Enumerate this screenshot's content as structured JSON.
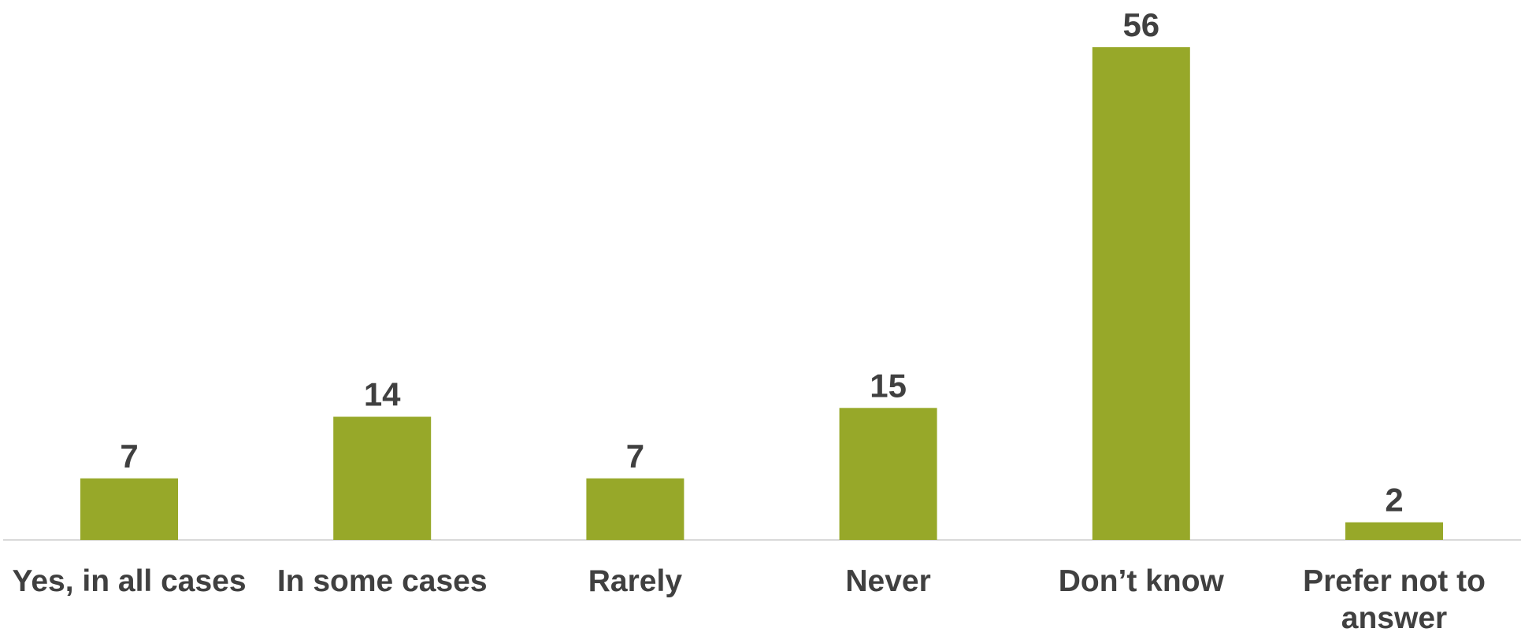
{
  "chart_data": {
    "type": "bar",
    "categories": [
      "Yes, in all cases",
      "In some cases",
      "Rarely",
      "Never",
      "Don’t know",
      "Prefer not to answer"
    ],
    "category_lines": [
      [
        "Yes, in all cases"
      ],
      [
        "In some cases"
      ],
      [
        "Rarely"
      ],
      [
        "Never"
      ],
      [
        "Don’t know"
      ],
      [
        "Prefer not to",
        "answer"
      ]
    ],
    "values": [
      7,
      14,
      7,
      15,
      56,
      2
    ],
    "data_labels": [
      "7",
      "14",
      "7",
      "15",
      "56",
      "2"
    ],
    "ylim": [
      0,
      56
    ],
    "grid": false,
    "legend": "none",
    "colors": {
      "bar": "#97A829",
      "text": "#404040",
      "axis": "#D9D9D9"
    }
  }
}
